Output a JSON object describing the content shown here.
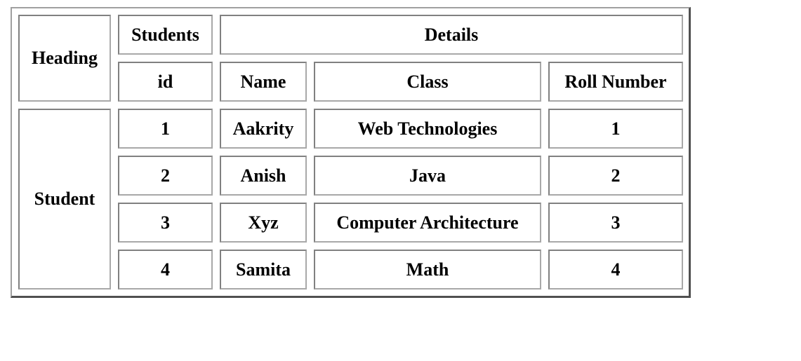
{
  "table": {
    "row_header_label": "Heading",
    "group_headers": [
      {
        "label": "Students"
      },
      {
        "label": "Details"
      }
    ],
    "columns": [
      "id",
      "Name",
      "Class",
      "Roll Number"
    ],
    "row_group_label": "Student",
    "rows": [
      {
        "id": "1",
        "name": "Aakrity",
        "class": "Web Technologies",
        "roll": "1"
      },
      {
        "id": "2",
        "name": "Anish",
        "class": "Java",
        "roll": "2"
      },
      {
        "id": "3",
        "name": "Xyz",
        "class": "Computer Architecture",
        "roll": "3"
      },
      {
        "id": "4",
        "name": "Samita",
        "class": "Math",
        "roll": "4"
      }
    ]
  },
  "colors": {
    "cell_border_dark": "#808080",
    "cell_border_light": "#a8a8a8",
    "outer_border_shadow": "#505050",
    "background": "#ffffff",
    "text": "#000000"
  }
}
